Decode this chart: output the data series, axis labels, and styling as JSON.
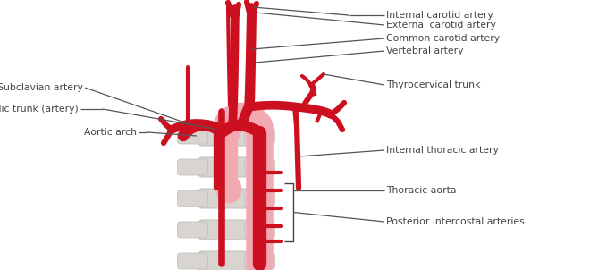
{
  "bg_color": "#ffffff",
  "artery_red": "#cc1020",
  "artery_pink": "#f2aab2",
  "spine_gray": "#d8d4d0",
  "spine_edge": "#c0bcb8",
  "line_color": "#555555",
  "text_color": "#444444",
  "labels": {
    "internal_carotid": "Internal carotid artery",
    "external_carotid": "External carotid artery",
    "common_carotid": "Common carotid artery",
    "vertebral": "Vertebral artery",
    "thyrocervical": "Thyrocervical trunk",
    "subclavian": "Subclavian artery",
    "brachiocephalic": "Brachiocephalic trunk (artery)",
    "aortic_arch": "Aortic arch",
    "internal_thoracic": "Internal thoracic artery",
    "thoracic_aorta": "Thoracic aorta",
    "posterior_intercostal": "Posterior intercostal arteries"
  },
  "figsize": [
    6.88,
    3.02
  ],
  "dpi": 100
}
